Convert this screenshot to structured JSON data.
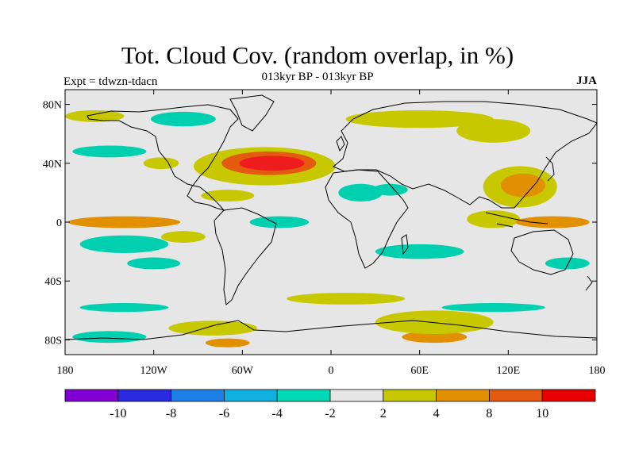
{
  "title": "Tot. Cloud Cov. (random overlap, in %)",
  "subtitle": "013kyr BP - 013kyr BP",
  "experiment_label": "Expt = tdwzn-tdacn",
  "season": "JJA",
  "map": {
    "background_color": "#e6e6e6",
    "lat_tick_labels": [
      "80N",
      "40N",
      "0",
      "40S",
      "80S"
    ],
    "lat_tick_values": [
      80,
      40,
      0,
      -40,
      -80
    ],
    "lon_tick_labels": [
      "180",
      "120W",
      "60W",
      "0",
      "60E",
      "120E",
      "180"
    ],
    "lon_tick_values": [
      -180,
      -120,
      -60,
      0,
      60,
      120,
      180
    ],
    "lon_range": [
      -180,
      180
    ],
    "lat_range": [
      -90,
      90
    ],
    "anomaly_regions": [
      {
        "name": "north-atlantic-max",
        "lon": -40,
        "lat": 40,
        "rx": 22,
        "ry": 5,
        "color": "#ee1c1c"
      },
      {
        "name": "north-atlantic-ring",
        "lon": -42,
        "lat": 40,
        "rx": 32,
        "ry": 8,
        "color": "#e35a10"
      },
      {
        "name": "north-atlantic-outer",
        "lon": -45,
        "lat": 38,
        "rx": 48,
        "ry": 13,
        "color": "#c8c800"
      },
      {
        "name": "arctic-band",
        "lon": 60,
        "lat": 70,
        "rx": 50,
        "ry": 6,
        "color": "#c8c800"
      },
      {
        "name": "siberia",
        "lon": 110,
        "lat": 62,
        "rx": 25,
        "ry": 8,
        "color": "#c8c800"
      },
      {
        "name": "china",
        "lon": 130,
        "lat": 25,
        "rx": 15,
        "ry": 8,
        "color": "#e09000"
      },
      {
        "name": "china-outer",
        "lon": 128,
        "lat": 24,
        "rx": 25,
        "ry": 14,
        "color": "#c8c800"
      },
      {
        "name": "equator-pacific-e",
        "lon": -140,
        "lat": 0,
        "rx": 38,
        "ry": 4,
        "color": "#e09000"
      },
      {
        "name": "equator-pacific-w",
        "lon": 150,
        "lat": 0,
        "rx": 25,
        "ry": 4,
        "color": "#e09000"
      },
      {
        "name": "indonesia",
        "lon": 110,
        "lat": 2,
        "rx": 18,
        "ry": 6,
        "color": "#c8c800"
      },
      {
        "name": "south-pacific-teal",
        "lon": -140,
        "lat": -15,
        "rx": 30,
        "ry": 6,
        "color": "#00d0b0"
      },
      {
        "name": "south-pacific-teal-2",
        "lon": -120,
        "lat": -28,
        "rx": 18,
        "ry": 4,
        "color": "#00d0b0"
      },
      {
        "name": "africa-teal",
        "lon": 20,
        "lat": 20,
        "rx": 15,
        "ry": 6,
        "color": "#00d0b0"
      },
      {
        "name": "arabia-teal",
        "lon": 40,
        "lat": 22,
        "rx": 12,
        "ry": 4,
        "color": "#00d0b0"
      },
      {
        "name": "south-indian-teal",
        "lon": 60,
        "lat": -20,
        "rx": 30,
        "ry": 5,
        "color": "#00d0b0"
      },
      {
        "name": "atlantic-teal-tropic",
        "lon": -35,
        "lat": 0,
        "rx": 20,
        "ry": 4,
        "color": "#00d0b0"
      },
      {
        "name": "south-ocean-yellow",
        "lon": 70,
        "lat": -68,
        "rx": 40,
        "ry": 8,
        "color": "#c8c800"
      },
      {
        "name": "south-ocean-orange",
        "lon": 70,
        "lat": -78,
        "rx": 22,
        "ry": 4,
        "color": "#e09000"
      },
      {
        "name": "south-ocean-teal",
        "lon": -140,
        "lat": -58,
        "rx": 30,
        "ry": 3,
        "color": "#00d0b0"
      },
      {
        "name": "south-ocean-teal-2",
        "lon": -150,
        "lat": -78,
        "rx": 25,
        "ry": 4,
        "color": "#00d0b0"
      },
      {
        "name": "antarctic-orange",
        "lon": -70,
        "lat": -82,
        "rx": 15,
        "ry": 3,
        "color": "#e09000"
      },
      {
        "name": "south-ocean-yellow-2",
        "lon": -80,
        "lat": -72,
        "rx": 30,
        "ry": 5,
        "color": "#c8c800"
      },
      {
        "name": "south-atlantic-yellow",
        "lon": 10,
        "lat": -52,
        "rx": 40,
        "ry": 4,
        "color": "#c8c800"
      },
      {
        "name": "south-indian-teal-2",
        "lon": 110,
        "lat": -58,
        "rx": 35,
        "ry": 3,
        "color": "#00d0b0"
      },
      {
        "name": "north-pacific-teal",
        "lon": -150,
        "lat": 48,
        "rx": 25,
        "ry": 4,
        "color": "#00d0b0"
      },
      {
        "name": "north-pacific-yellow",
        "lon": -160,
        "lat": 72,
        "rx": 20,
        "ry": 4,
        "color": "#c8c800"
      },
      {
        "name": "canada-teal",
        "lon": -100,
        "lat": 70,
        "rx": 22,
        "ry": 5,
        "color": "#00d0b0"
      },
      {
        "name": "usa-yellow",
        "lon": -115,
        "lat": 40,
        "rx": 12,
        "ry": 4,
        "color": "#c8c800"
      },
      {
        "name": "central-america-yellow",
        "lon": -70,
        "lat": 18,
        "rx": 18,
        "ry": 4,
        "color": "#c8c800"
      },
      {
        "name": "west-pacific-teal",
        "lon": 160,
        "lat": -28,
        "rx": 15,
        "ry": 4,
        "color": "#00d0b0"
      },
      {
        "name": "east-pacific-yellow",
        "lon": -100,
        "lat": -10,
        "rx": 15,
        "ry": 4,
        "color": "#c8c800"
      }
    ]
  },
  "colorbar": {
    "colors": [
      "#7f00d0",
      "#2a2ae0",
      "#1e7fe6",
      "#10b0e0",
      "#00d8b8",
      "#e6e6e6",
      "#c8c800",
      "#e09000",
      "#e35a10",
      "#e60000"
    ],
    "labels": [
      "-10",
      "-8",
      "-6",
      "-4",
      "-2",
      "2",
      "4",
      "8",
      "10"
    ]
  }
}
